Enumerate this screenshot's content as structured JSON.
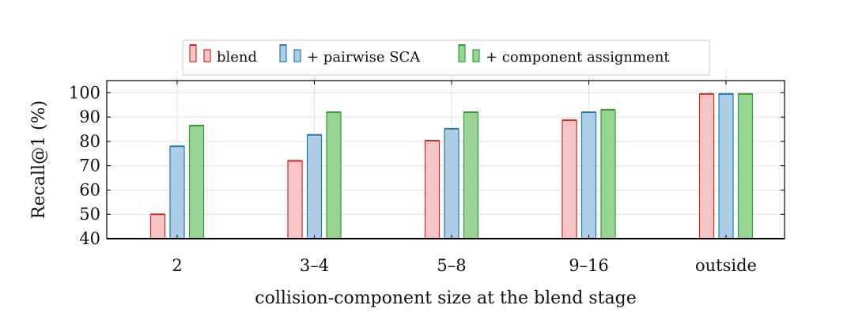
{
  "chart_data": {
    "type": "bar",
    "categories": [
      "2",
      "3–4",
      "5–8",
      "9–16",
      "outside"
    ],
    "series": [
      {
        "name": "blend",
        "values": [
          50,
          72,
          80.3,
          88.7,
          99.5
        ],
        "fill": "#f7c6c7",
        "stroke": "#d62728"
      },
      {
        "name": "+ pairwise SCA",
        "values": [
          78,
          82.7,
          85.2,
          92,
          99.5
        ],
        "fill": "#aecde6",
        "stroke": "#1f77b4"
      },
      {
        "name": "+ component assignment",
        "values": [
          86.5,
          92,
          92,
          93,
          99.5
        ],
        "fill": "#98d594",
        "stroke": "#2ca02c"
      }
    ],
    "xlabel": "collision-component size at the blend stage",
    "ylabel": "Recall@1 (%)",
    "ylim": [
      40,
      105
    ],
    "yticks": [
      40,
      50,
      60,
      70,
      80,
      90,
      100
    ],
    "grid": true,
    "legend_position": "top-center"
  }
}
